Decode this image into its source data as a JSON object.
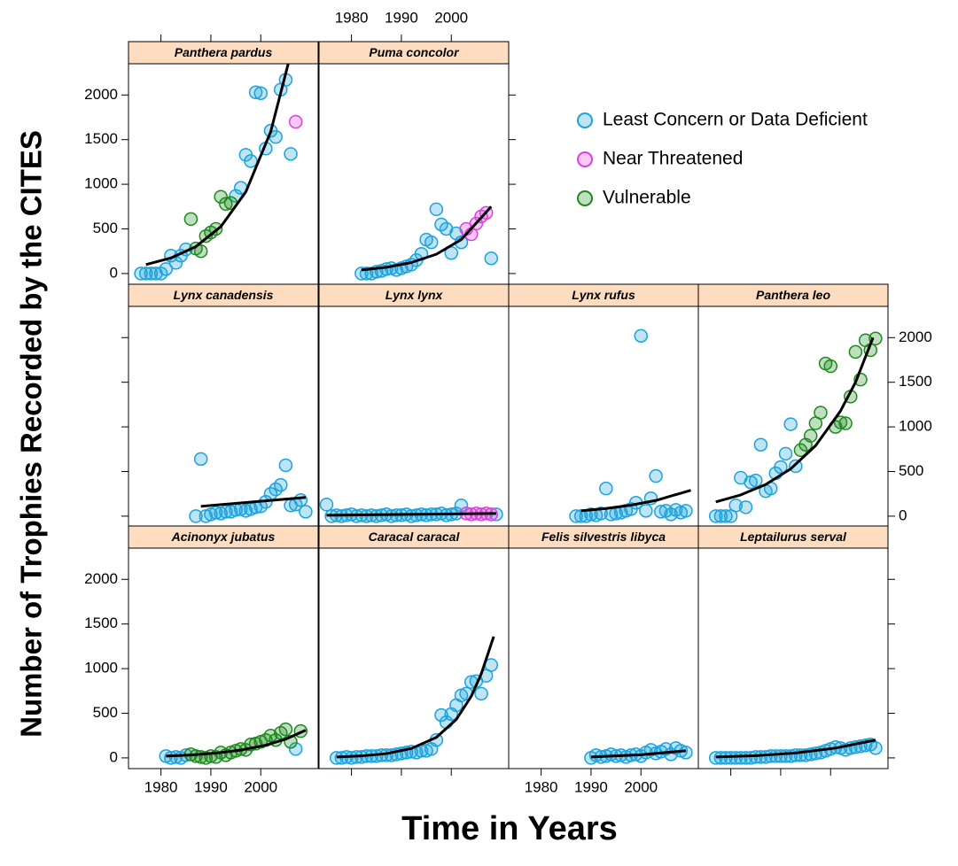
{
  "chart_data": {
    "type": "scatter",
    "x_label": "Time in Years",
    "y_label": "Number of Trophies Recorded by the CITES",
    "xlim": [
      1973.5,
      2011.5
    ],
    "xticks": [
      1980,
      1990,
      2000
    ],
    "ylim": [
      -120,
      2350
    ],
    "yticks": [
      0,
      500,
      1000,
      1500,
      2000
    ],
    "legend": [
      {
        "name": "Least Concern or Data Deficient",
        "color": "#1aa3dc"
      },
      {
        "name": "Near Threatened",
        "color": "#e03ee0"
      },
      {
        "name": "Vulnerable",
        "color": "#1c8a1c"
      }
    ],
    "panels": [
      {
        "title": "Panthera pardus",
        "series": [
          {
            "status": 0,
            "x": [
              1976,
              1977,
              1978,
              1979,
              1980,
              1981,
              1982,
              1983,
              1984,
              1985,
              1995,
              1996,
              1997,
              1998,
              1999,
              2000,
              2001,
              2002,
              2003,
              2004,
              2005,
              2006
            ],
            "values": [
              0,
              0,
              0,
              0,
              0,
              50,
              200,
              120,
              200,
              270,
              870,
              960,
              1330,
              1260,
              2030,
              2020,
              1400,
              1600,
              1530,
              2060,
              2170,
              1340
            ]
          },
          {
            "status": 1,
            "x": [
              2007
            ],
            "values": [
              1700
            ]
          },
          {
            "status": 2,
            "x": [
              1986,
              1987,
              1988,
              1989,
              1990,
              1991,
              1992,
              1993,
              1994
            ],
            "values": [
              610,
              280,
              250,
              420,
              460,
              500,
              860,
              780,
              790
            ]
          }
        ],
        "fit": {
          "x": [
            1977,
            1982,
            1987,
            1992,
            1997,
            2002,
            2005.5
          ],
          "values": [
            100,
            174,
            302,
            525,
            914,
            1590,
            2350
          ]
        }
      },
      {
        "title": "Puma concolor",
        "series": [
          {
            "status": 0,
            "x": [
              1982,
              1983,
              1984,
              1985,
              1986,
              1987,
              1988,
              1989,
              1990,
              1991,
              1992,
              1993,
              1994,
              1995,
              1996,
              1997,
              1998,
              1999,
              2000,
              2001,
              2002,
              2008
            ],
            "values": [
              0,
              0,
              0,
              20,
              30,
              50,
              60,
              40,
              60,
              80,
              100,
              150,
              220,
              380,
              350,
              720,
              550,
              500,
              230,
              450,
              350,
              170
            ]
          },
          {
            "status": 1,
            "x": [
              2003,
              2004,
              2005,
              2006,
              2007
            ],
            "values": [
              500,
              440,
              560,
              640,
              680
            ]
          }
        ],
        "fit": {
          "x": [
            1982,
            1987,
            1992,
            1997,
            2002,
            2008
          ],
          "values": [
            40,
            70,
            123,
            216,
            380,
            750
          ]
        }
      },
      {
        "title": "Lynx canadensis",
        "series": [
          {
            "status": 0,
            "x": [
              1987,
              1988,
              1989,
              1990,
              1991,
              1992,
              1993,
              1994,
              1995,
              1996,
              1997,
              1998,
              1999,
              2000,
              2001,
              2002,
              2003,
              2004,
              2005,
              2006,
              2007,
              2008,
              2009
            ],
            "values": [
              0,
              640,
              0,
              20,
              40,
              30,
              50,
              50,
              70,
              80,
              60,
              80,
              100,
              110,
              160,
              250,
              300,
              350,
              570,
              120,
              130,
              180,
              50
            ]
          }
        ],
        "fit": {
          "x": [
            1988,
            2009
          ],
          "values": [
            110,
            210
          ]
        }
      },
      {
        "title": "Lynx lynx",
        "series": [
          {
            "status": 0,
            "x": [
              1975,
              1976,
              1977,
              1978,
              1979,
              1980,
              1981,
              1982,
              1983,
              1984,
              1985,
              1986,
              1987,
              1988,
              1989,
              1990,
              1991,
              1992,
              1993,
              1994,
              1995,
              1996,
              1997,
              1998,
              1999,
              2000,
              2001,
              2002,
              2009
            ],
            "values": [
              130,
              0,
              10,
              0,
              10,
              20,
              0,
              10,
              0,
              10,
              0,
              10,
              20,
              0,
              10,
              10,
              20,
              0,
              10,
              20,
              10,
              20,
              20,
              30,
              10,
              20,
              30,
              120,
              20
            ]
          },
          {
            "status": 1,
            "x": [
              2003,
              2004,
              2005,
              2006,
              2007,
              2008
            ],
            "values": [
              30,
              20,
              30,
              20,
              30,
              20
            ]
          }
        ],
        "fit": {
          "x": [
            1975,
            2009
          ],
          "values": [
            10,
            30
          ]
        }
      },
      {
        "title": "Lynx rufus",
        "series": [
          {
            "status": 0,
            "x": [
              1987,
              1988,
              1989,
              1990,
              1991,
              1992,
              1993,
              1994,
              1995,
              1996,
              1997,
              1998,
              1999,
              2000,
              2001,
              2002,
              2003,
              2004,
              2005,
              2006,
              2007,
              2008,
              2009
            ],
            "values": [
              0,
              0,
              0,
              20,
              10,
              30,
              310,
              20,
              30,
              40,
              60,
              80,
              150,
              2020,
              60,
              200,
              450,
              50,
              60,
              20,
              70,
              40,
              60
            ]
          }
        ],
        "fit": {
          "x": [
            1988,
            1993,
            1998,
            2003,
            2010
          ],
          "values": [
            60,
            86,
            123,
            176,
            290
          ]
        }
      },
      {
        "title": "Panthera leo",
        "series": [
          {
            "status": 0,
            "x": [
              1977,
              1978,
              1979,
              1980,
              1981,
              1982,
              1983,
              1984,
              1985,
              1986,
              1987,
              1988,
              1989,
              1990,
              1991,
              1992,
              1993
            ],
            "values": [
              0,
              0,
              0,
              0,
              120,
              430,
              100,
              380,
              400,
              800,
              280,
              310,
              480,
              550,
              700,
              1030,
              560
            ]
          },
          {
            "status": 2,
            "x": [
              1994,
              1995,
              1996,
              1997,
              1998,
              1999,
              2000,
              2001,
              2002,
              2003,
              2004,
              2005,
              2006,
              2007,
              2008,
              2009
            ],
            "values": [
              740,
              800,
              900,
              1040,
              1160,
              1710,
              1680,
              1000,
              1050,
              1040,
              1340,
              1840,
              1530,
              1970,
              1860,
              1990
            ]
          }
        ],
        "fit": {
          "x": [
            1977,
            1982,
            1987,
            1992,
            1997,
            2002,
            2005,
            2008.5
          ],
          "values": [
            160,
            238,
            355,
            530,
            790,
            1180,
            1500,
            2000
          ]
        }
      },
      {
        "title": "Acinonyx jubatus",
        "series": [
          {
            "status": 0,
            "x": [
              1981,
              1982,
              1983,
              1984,
              1985,
              2007
            ],
            "values": [
              20,
              0,
              10,
              0,
              30,
              100
            ]
          },
          {
            "status": 2,
            "x": [
              1986,
              1987,
              1988,
              1989,
              1990,
              1991,
              1992,
              1993,
              1994,
              1995,
              1996,
              1997,
              1998,
              1999,
              2000,
              2001,
              2002,
              2003,
              2004,
              2005,
              2006,
              2008
            ],
            "values": [
              40,
              20,
              10,
              0,
              20,
              10,
              60,
              30,
              60,
              80,
              100,
              90,
              150,
              160,
              180,
              200,
              250,
              200,
              280,
              320,
              180,
              300
            ]
          }
        ],
        "fit": {
          "x": [
            1981,
            1986,
            1991,
            1996,
            2001,
            2005,
            2009
          ],
          "values": [
            20,
            33,
            53,
            87,
            142,
            210,
            310
          ]
        }
      },
      {
        "title": "Caracal caracal",
        "series": [
          {
            "status": 0,
            "x": [
              1977,
              1978,
              1979,
              1980,
              1981,
              1982,
              1983,
              1984,
              1985,
              1986,
              1987,
              1988,
              1989,
              1990,
              1991,
              1992,
              1993,
              1994,
              1995,
              1996,
              1997,
              1998,
              1999,
              2000,
              2001,
              2002,
              2003,
              2004,
              2005,
              2006,
              2007,
              2008
            ],
            "values": [
              0,
              0,
              10,
              0,
              10,
              10,
              20,
              20,
              20,
              30,
              30,
              30,
              40,
              50,
              60,
              70,
              60,
              80,
              80,
              100,
              200,
              480,
              400,
              490,
              590,
              700,
              720,
              850,
              860,
              720,
              920,
              1040
            ]
          }
        ],
        "fit": {
          "x": [
            1977,
            1982,
            1987,
            1992,
            1997,
            2001,
            2004,
            2006,
            2008.5
          ],
          "values": [
            10,
            22,
            48,
            105,
            230,
            430,
            690,
            940,
            1360
          ]
        }
      },
      {
        "title": "Felis silvestris libyca",
        "series": [
          {
            "status": 0,
            "x": [
              1990,
              1991,
              1992,
              1993,
              1994,
              1995,
              1996,
              1997,
              1998,
              1999,
              2000,
              2001,
              2002,
              2003,
              2004,
              2005,
              2006,
              2007,
              2008,
              2009
            ],
            "values": [
              0,
              30,
              10,
              20,
              40,
              20,
              30,
              10,
              30,
              40,
              20,
              60,
              90,
              50,
              70,
              100,
              40,
              110,
              80,
              60
            ]
          }
        ],
        "fit": {
          "x": [
            1990,
            2000,
            2009
          ],
          "values": [
            10,
            35,
            80
          ]
        }
      },
      {
        "title": "Leptailurus serval",
        "series": [
          {
            "status": 0,
            "x": [
              1977,
              1978,
              1979,
              1980,
              1981,
              1982,
              1983,
              1984,
              1985,
              1986,
              1987,
              1988,
              1989,
              1990,
              1991,
              1992,
              1993,
              1994,
              1995,
              1996,
              1997,
              1998,
              1999,
              2000,
              2001,
              2002,
              2003,
              2004,
              2005,
              2006,
              2007,
              2008,
              2009
            ],
            "values": [
              0,
              0,
              0,
              0,
              0,
              0,
              0,
              0,
              10,
              10,
              10,
              20,
              20,
              20,
              20,
              20,
              30,
              30,
              30,
              40,
              50,
              60,
              80,
              100,
              120,
              110,
              90,
              110,
              120,
              130,
              140,
              150,
              110
            ]
          }
        ],
        "fit": {
          "x": [
            1977,
            1985,
            1993,
            2001,
            2009
          ],
          "values": [
            10,
            25,
            55,
            110,
            200
          ]
        }
      }
    ]
  }
}
